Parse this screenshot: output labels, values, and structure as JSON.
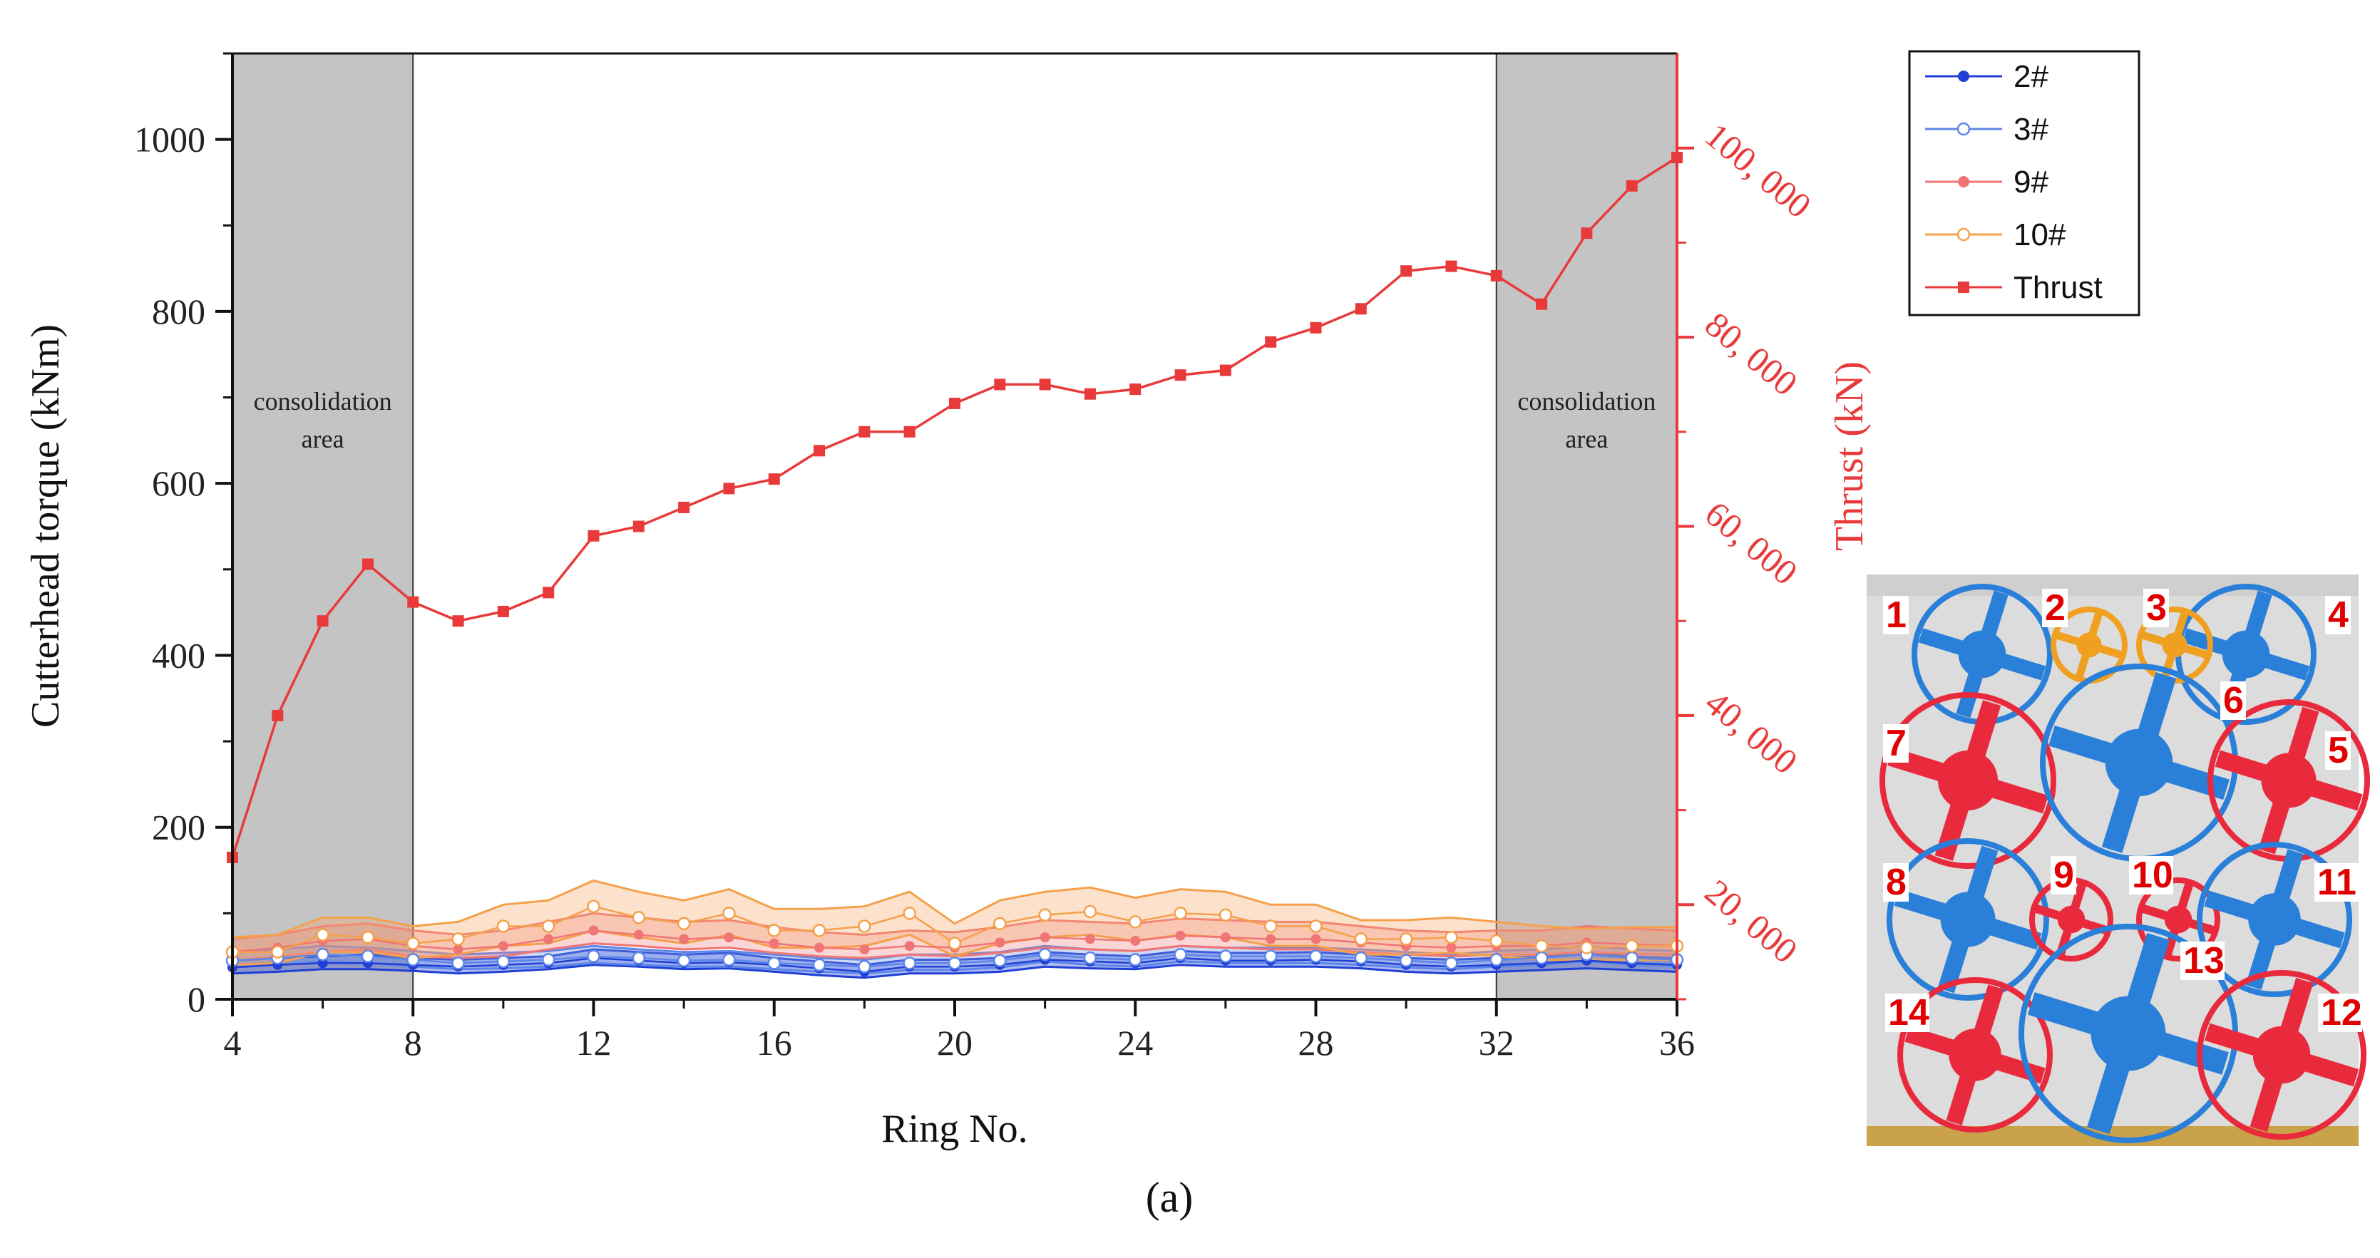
{
  "chart_data": {
    "type": "line",
    "caption": "(a)",
    "xlabel": "Ring No.",
    "ylabel": "Cutterhead torque (kNm)",
    "y2label": "Thrust (kN)",
    "xlim": [
      4,
      36
    ],
    "ylim": [
      0,
      1100
    ],
    "y2lim": [
      10000,
      110000
    ],
    "xticks": [
      "4",
      "8",
      "12",
      "16",
      "20",
      "24",
      "28",
      "32",
      "36"
    ],
    "xtick_values": [
      4,
      8,
      12,
      16,
      20,
      24,
      28,
      32,
      36
    ],
    "yticks": [
      "0",
      "200",
      "400",
      "600",
      "800",
      "1000"
    ],
    "ytick_values": [
      0,
      200,
      400,
      600,
      800,
      1000
    ],
    "y2ticks": [
      "20, 000",
      "40, 000",
      "60, 000",
      "80, 000",
      "100, 000"
    ],
    "y2tick_values": [
      20000,
      40000,
      60000,
      80000,
      100000
    ],
    "shaded_regions": [
      {
        "x": [
          4,
          8
        ],
        "label_line1": "consolidation",
        "label_line2": "area"
      },
      {
        "x": [
          32,
          36
        ],
        "label_line1": "consolidation",
        "label_line2": "area"
      }
    ],
    "x": [
      4,
      5,
      6,
      7,
      8,
      9,
      10,
      11,
      12,
      13,
      14,
      15,
      16,
      17,
      18,
      19,
      20,
      21,
      22,
      23,
      24,
      25,
      26,
      27,
      28,
      29,
      30,
      31,
      32,
      33,
      34,
      35,
      36
    ],
    "series": [
      {
        "name": "2#",
        "axis": "left",
        "color": "#1f3fd6",
        "marker": "circle-filled",
        "values": [
          37,
          40,
          42,
          42,
          40,
          38,
          40,
          42,
          48,
          45,
          42,
          43,
          40,
          36,
          32,
          38,
          38,
          40,
          46,
          44,
          42,
          48,
          45,
          45,
          46,
          44,
          40,
          38,
          40,
          42,
          45,
          42,
          40
        ],
        "band": [
          [
            30,
            45
          ],
          [
            32,
            48
          ],
          [
            35,
            50
          ],
          [
            35,
            52
          ],
          [
            33,
            48
          ],
          [
            30,
            46
          ],
          [
            32,
            48
          ],
          [
            35,
            50
          ],
          [
            40,
            58
          ],
          [
            38,
            55
          ],
          [
            35,
            52
          ],
          [
            36,
            54
          ],
          [
            32,
            48
          ],
          [
            28,
            44
          ],
          [
            25,
            40
          ],
          [
            30,
            46
          ],
          [
            30,
            46
          ],
          [
            32,
            48
          ],
          [
            38,
            55
          ],
          [
            36,
            52
          ],
          [
            35,
            50
          ],
          [
            40,
            56
          ],
          [
            38,
            54
          ],
          [
            38,
            54
          ],
          [
            38,
            55
          ],
          [
            36,
            52
          ],
          [
            32,
            48
          ],
          [
            30,
            46
          ],
          [
            32,
            48
          ],
          [
            34,
            50
          ],
          [
            36,
            54
          ],
          [
            34,
            50
          ],
          [
            32,
            48
          ]
        ]
      },
      {
        "name": "3#",
        "axis": "left",
        "color": "#5c86e8",
        "marker": "circle-open",
        "values": [
          45,
          48,
          52,
          50,
          46,
          42,
          44,
          46,
          50,
          48,
          45,
          46,
          42,
          40,
          38,
          42,
          42,
          45,
          52,
          48,
          46,
          52,
          50,
          50,
          50,
          48,
          45,
          42,
          46,
          48,
          52,
          48,
          46
        ],
        "band": [
          [
            38,
            55
          ],
          [
            40,
            58
          ],
          [
            44,
            62
          ],
          [
            42,
            60
          ],
          [
            38,
            56
          ],
          [
            35,
            52
          ],
          [
            36,
            54
          ],
          [
            38,
            56
          ],
          [
            42,
            62
          ],
          [
            40,
            58
          ],
          [
            38,
            55
          ],
          [
            38,
            56
          ],
          [
            35,
            52
          ],
          [
            32,
            48
          ],
          [
            30,
            46
          ],
          [
            34,
            52
          ],
          [
            34,
            52
          ],
          [
            37,
            55
          ],
          [
            44,
            62
          ],
          [
            40,
            58
          ],
          [
            38,
            56
          ],
          [
            44,
            62
          ],
          [
            42,
            60
          ],
          [
            42,
            60
          ],
          [
            42,
            60
          ],
          [
            40,
            58
          ],
          [
            37,
            55
          ],
          [
            35,
            52
          ],
          [
            38,
            56
          ],
          [
            40,
            58
          ],
          [
            44,
            62
          ],
          [
            40,
            58
          ],
          [
            38,
            56
          ]
        ]
      },
      {
        "name": "9#",
        "axis": "left",
        "color": "#f07575",
        "marker": "circle-filled",
        "values": [
          55,
          60,
          68,
          70,
          62,
          58,
          62,
          70,
          80,
          75,
          70,
          72,
          65,
          60,
          58,
          62,
          60,
          66,
          72,
          70,
          68,
          74,
          72,
          70,
          70,
          66,
          62,
          60,
          62,
          62,
          66,
          64,
          62
        ],
        "band": [
          [
            45,
            70
          ],
          [
            50,
            75
          ],
          [
            55,
            85
          ],
          [
            58,
            88
          ],
          [
            50,
            80
          ],
          [
            48,
            75
          ],
          [
            50,
            80
          ],
          [
            58,
            90
          ],
          [
            65,
            100
          ],
          [
            62,
            95
          ],
          [
            58,
            90
          ],
          [
            60,
            92
          ],
          [
            54,
            84
          ],
          [
            50,
            78
          ],
          [
            48,
            75
          ],
          [
            52,
            80
          ],
          [
            50,
            78
          ],
          [
            54,
            84
          ],
          [
            60,
            92
          ],
          [
            58,
            90
          ],
          [
            56,
            88
          ],
          [
            62,
            94
          ],
          [
            60,
            92
          ],
          [
            58,
            90
          ],
          [
            58,
            90
          ],
          [
            55,
            85
          ],
          [
            52,
            80
          ],
          [
            50,
            78
          ],
          [
            52,
            80
          ],
          [
            52,
            80
          ],
          [
            55,
            85
          ],
          [
            53,
            82
          ],
          [
            52,
            80
          ]
        ]
      },
      {
        "name": "10#",
        "axis": "left",
        "color": "#f5a04a",
        "marker": "circle-open",
        "values": [
          55,
          55,
          75,
          72,
          65,
          70,
          85,
          85,
          108,
          95,
          88,
          100,
          80,
          80,
          85,
          100,
          65,
          88,
          98,
          102,
          90,
          100,
          98,
          85,
          85,
          70,
          70,
          72,
          68,
          62,
          60,
          62,
          62
        ],
        "band": [
          [
            40,
            72
          ],
          [
            42,
            75
          ],
          [
            55,
            95
          ],
          [
            55,
            95
          ],
          [
            48,
            85
          ],
          [
            52,
            90
          ],
          [
            62,
            110
          ],
          [
            65,
            115
          ],
          [
            80,
            138
          ],
          [
            72,
            125
          ],
          [
            65,
            115
          ],
          [
            75,
            128
          ],
          [
            60,
            105
          ],
          [
            60,
            105
          ],
          [
            62,
            108
          ],
          [
            75,
            125
          ],
          [
            50,
            88
          ],
          [
            65,
            115
          ],
          [
            72,
            125
          ],
          [
            75,
            130
          ],
          [
            68,
            118
          ],
          [
            75,
            128
          ],
          [
            72,
            125
          ],
          [
            62,
            110
          ],
          [
            62,
            110
          ],
          [
            52,
            92
          ],
          [
            52,
            92
          ],
          [
            54,
            95
          ],
          [
            50,
            90
          ],
          [
            46,
            85
          ],
          [
            45,
            82
          ],
          [
            46,
            84
          ],
          [
            46,
            84
          ]
        ]
      },
      {
        "name": "Thrust",
        "axis": "right",
        "color": "#e83a3a",
        "marker": "square-filled",
        "values": [
          25000,
          40000,
          50000,
          56000,
          52000,
          50000,
          51000,
          53000,
          59000,
          60000,
          62000,
          64000,
          65000,
          68000,
          70000,
          70000,
          73000,
          75000,
          75000,
          74000,
          74500,
          76000,
          76500,
          79500,
          81000,
          83000,
          87000,
          87500,
          86500,
          83500,
          91000,
          96000,
          99000
        ]
      }
    ]
  },
  "inset_photo": {
    "labels": [
      "1",
      "2",
      "3",
      "4",
      "5",
      "6",
      "7",
      "8",
      "9",
      "10",
      "11",
      "12",
      "13",
      "14"
    ]
  }
}
